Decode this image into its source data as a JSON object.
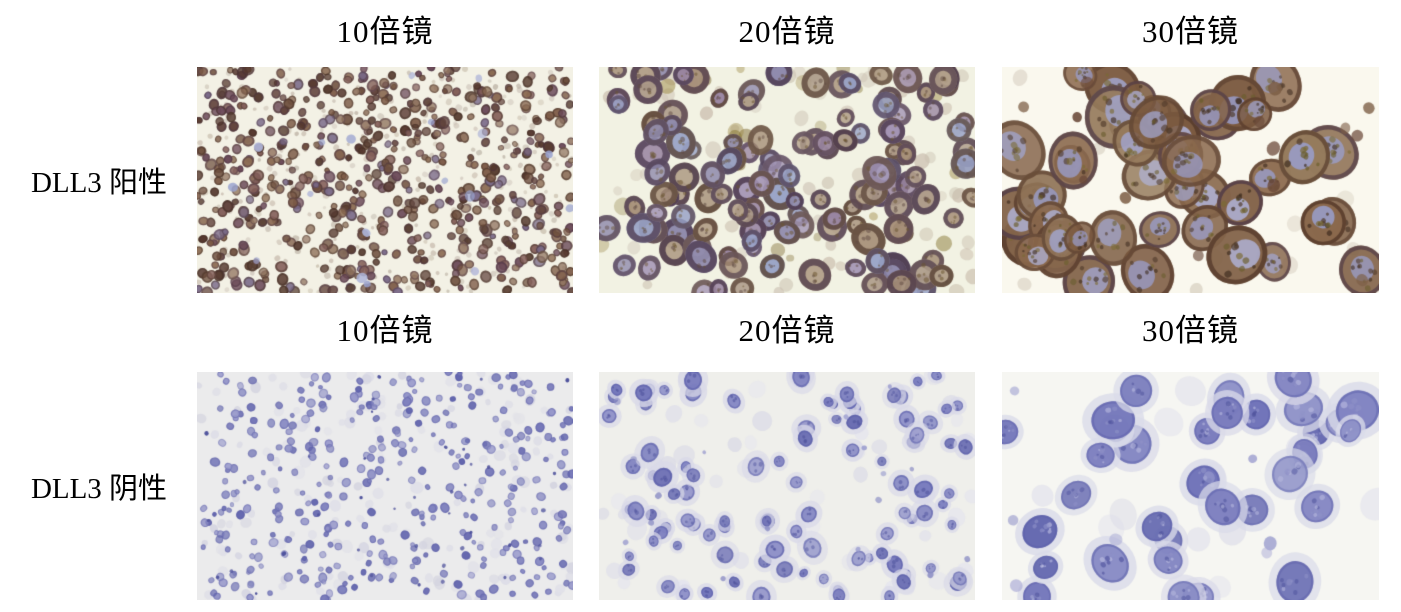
{
  "figure": {
    "rows": [
      {
        "label": "DLL3 阳性",
        "columns": [
          "10倍镜",
          "20倍镜",
          "30倍镜"
        ]
      },
      {
        "label": "DLL3 阴性",
        "columns": [
          "10倍镜",
          "20倍镜",
          "30倍镜"
        ]
      }
    ]
  },
  "colors": {
    "page_bg": "#ffffff",
    "text": "#000000",
    "ihc_brown": "#7b5a46",
    "hematoxylin_blue": "#7678b8"
  },
  "panels": {
    "pos10": {
      "seed": 101,
      "bg": "#f3f1e5",
      "layers": [
        {
          "n": 260,
          "rmin": 1.5,
          "rmax": 3.2,
          "colors": [
            "#c9bfae",
            "#bdb3a6",
            "#cfc6bc",
            "#c5b8ab"
          ],
          "amin": 0.45,
          "amax": 0.8
        },
        {
          "n": 640,
          "rmin": 3.0,
          "rmax": 5.8,
          "colors": [
            "#5a4034",
            "#6e4f3e",
            "#7c5a46",
            "#64463f",
            "#8a6a52",
            "#6b4a58",
            "#937763",
            "#55382e",
            "#7a6a88",
            "#84605a"
          ],
          "amin": 0.72,
          "amax": 1.0,
          "rim": {
            "colors": [
              "#3f2b22",
              "#4a3340"
            ],
            "w": 0.3,
            "a": 0.55
          }
        },
        {
          "n": 18,
          "rmin": 3.0,
          "rmax": 5.2,
          "colors": [
            "#9aa3cf",
            "#aeb4d8"
          ],
          "amin": 0.65,
          "amax": 0.95
        }
      ]
    },
    "pos20": {
      "seed": 202,
      "bg": "#f2f2e3",
      "layers": [
        {
          "n": 70,
          "rmin": 4,
          "rmax": 8,
          "colors": [
            "#c9bfae",
            "#c3b4a4",
            "#cdc2b4"
          ],
          "amin": 0.35,
          "amax": 0.65
        },
        {
          "n": 25,
          "rmin": 4,
          "rmax": 9,
          "colors": [
            "#8a7a3a",
            "#7d6a30",
            "#9a8540"
          ],
          "amin": 0.3,
          "amax": 0.55
        },
        {
          "n": 132,
          "rmin": 9,
          "rmax": 16,
          "colors": [
            "#a394b4",
            "#a58e76",
            "#98a2c6",
            "#ac9a88",
            "#9b87a3",
            "#b3a18b",
            "#8f8aac"
          ],
          "amin": 0.78,
          "amax": 1.0,
          "rim": {
            "colors": [
              "#4e3b50",
              "#5a4336",
              "#463245",
              "#54404c"
            ],
            "w": 0.42,
            "a": 0.85
          },
          "speckle": {
            "n": 4,
            "colors": [
              "#5f4a42",
              "#6b5530"
            ],
            "scale": 0.12,
            "a": 0.55
          }
        }
      ]
    },
    "pos30": {
      "seed": 303,
      "bg": "#faf8ee",
      "layers": [
        {
          "n": 22,
          "rmin": 5,
          "rmax": 9,
          "colors": [
            "#c9bfae",
            "#d4cbbd"
          ],
          "amin": 0.35,
          "amax": 0.6
        },
        {
          "n": 48,
          "rmin": 17,
          "rmax": 30,
          "colors": [
            "#8a684c",
            "#7b5a40",
            "#957a5c",
            "#84644a",
            "#8f7256"
          ],
          "amin": 0.82,
          "amax": 1.0,
          "rim": {
            "colors": [
              "#54382a",
              "#5f4433",
              "#4f3a46"
            ],
            "w": 0.16,
            "a": 0.8
          },
          "nucleus": {
            "colors": [
              "#a3a8d4",
              "#b0b4da",
              "#9a9fce"
            ],
            "scale": 0.5,
            "a": 0.85
          },
          "speckle": {
            "n": 10,
            "colors": [
              "#4f3a2a",
              "#6b5e2e",
              "#3f2d20",
              "#7a6a34"
            ],
            "scale": 0.09,
            "a": 0.7
          }
        },
        {
          "n": 14,
          "rmin": 4,
          "rmax": 7,
          "colors": [
            "#6b4a3a",
            "#7d5f46"
          ],
          "amin": 0.55,
          "amax": 0.9
        }
      ]
    },
    "neg10": {
      "seed": 404,
      "bg": "#ebebec",
      "layers": [
        {
          "n": 150,
          "rmin": 3,
          "rmax": 6,
          "colors": [
            "#dcdce6",
            "#d4d4e0",
            "#e0e0e8"
          ],
          "amin": 0.5,
          "amax": 0.9
        },
        {
          "n": 360,
          "rmin": 2.2,
          "rmax": 4.6,
          "colors": [
            "#7678b8",
            "#8b8dc4",
            "#6366ae",
            "#9697ca",
            "#8082be"
          ],
          "amin": 0.6,
          "amax": 1.0,
          "rim": {
            "colors": [
              "#5a5ca6"
            ],
            "w": 0.26,
            "a": 0.5
          }
        },
        {
          "n": 40,
          "rmin": 1.2,
          "rmax": 2.2,
          "colors": [
            "#55589f",
            "#4e529c"
          ],
          "amin": 0.7,
          "amax": 1.0
        }
      ]
    },
    "neg20": {
      "seed": 505,
      "bg": "#efefeb",
      "layers": [
        {
          "n": 48,
          "rmin": 6,
          "rmax": 11,
          "colors": [
            "#e0e0ea",
            "#dadae6",
            "#e4e4ee"
          ],
          "amin": 0.45,
          "amax": 0.8
        },
        {
          "n": 98,
          "rmin": 4.5,
          "rmax": 9.0,
          "colors": [
            "#7477bb",
            "#8487c3",
            "#6a6db2",
            "#9193c9"
          ],
          "amin": 0.75,
          "amax": 1.0,
          "halo": {
            "color": "#d9d9e8",
            "scale": 1.7,
            "a": 0.8
          },
          "rim": {
            "colors": [
              "#585ca8"
            ],
            "w": 0.2,
            "a": 0.6
          },
          "speckle": {
            "n": 3,
            "colors": [
              "#4e529c"
            ],
            "scale": 0.18,
            "a": 0.6
          }
        },
        {
          "n": 18,
          "rmin": 2,
          "rmax": 3.5,
          "colors": [
            "#8d8fc5",
            "#9b9dce"
          ],
          "amin": 0.55,
          "amax": 0.9
        }
      ]
    },
    "neg30": {
      "seed": 606,
      "bg": "#f6f6f2",
      "layers": [
        {
          "n": 12,
          "rmin": 10,
          "rmax": 18,
          "colors": [
            "#e2e2ec",
            "#dcdce8"
          ],
          "amin": 0.45,
          "amax": 0.75
        },
        {
          "n": 34,
          "rmin": 12,
          "rmax": 21,
          "colors": [
            "#7073b9",
            "#7d80c0",
            "#6569b0",
            "#8a8dc6"
          ],
          "amin": 0.78,
          "amax": 1.0,
          "halo": {
            "color": "#dadbe9",
            "scale": 1.42,
            "a": 0.85
          },
          "rim": {
            "colors": [
              "#5c60aa"
            ],
            "w": 0.12,
            "a": 0.5
          },
          "speckle": {
            "n": 8,
            "colors": [
              "#51559e",
              "#8f92c8",
              "#babce0"
            ],
            "scale": 0.12,
            "a": 0.65
          }
        },
        {
          "n": 8,
          "rmin": 4,
          "rmax": 7,
          "colors": [
            "#9a9cce",
            "#aaabd6"
          ],
          "amin": 0.45,
          "amax": 0.8
        }
      ]
    }
  }
}
